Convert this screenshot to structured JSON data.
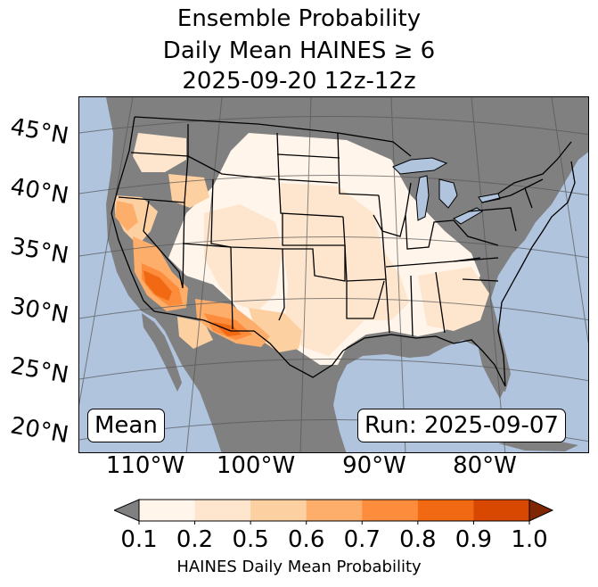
{
  "title": {
    "line1": "Ensemble Probability",
    "line2": "Daily Mean HAINES ≥ 6",
    "line3": "2025-09-20 12z-12z"
  },
  "map": {
    "ocean_color": "#b0c4de",
    "land_mask_color": "#808080",
    "lat_labels": [
      "45°N",
      "40°N",
      "35°N",
      "30°N",
      "25°N",
      "20°N"
    ],
    "lon_labels": [
      "110°W",
      "100°W",
      "90°W",
      "80°W"
    ],
    "stat_label": "Mean",
    "run_label": "Run: 2025-09-07"
  },
  "colorbar": {
    "label": "HAINES Daily Mean Probability",
    "ticks": [
      "0.1",
      "0.2",
      "0.5",
      "0.6",
      "0.7",
      "0.8",
      "0.9",
      "1.0"
    ],
    "under_color": "#808080",
    "over_color": "#7f2704",
    "colors": [
      "#fff5eb",
      "#fee6ce",
      "#fdd0a2",
      "#fdae6b",
      "#fd8d3c",
      "#f16913",
      "#d94801"
    ]
  }
}
